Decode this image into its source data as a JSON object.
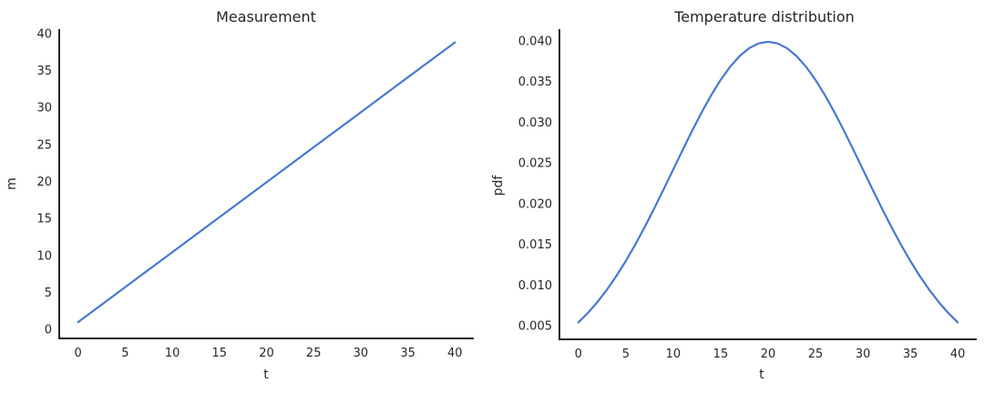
{
  "figure": {
    "background": "#ffffff",
    "text_color": "#262626",
    "axis_color": "#262626",
    "line_color": "#4878d0"
  },
  "chart_data": [
    {
      "type": "line",
      "title": "Measurement",
      "xlabel": "t",
      "ylabel": "m",
      "grid": false,
      "legend": null,
      "line_color": "#4878d0",
      "axis_color": "#262626",
      "xlim": [
        -2,
        42
      ],
      "ylim": [
        -1.2,
        40.6
      ],
      "xtick_values": [
        0,
        5,
        10,
        15,
        20,
        25,
        30,
        35,
        40
      ],
      "xtick_labels": [
        "0",
        "5",
        "10",
        "15",
        "20",
        "25",
        "30",
        "35",
        "40"
      ],
      "ytick_values": [
        0,
        5,
        10,
        15,
        20,
        25,
        30,
        35,
        40
      ],
      "ytick_labels": [
        "0",
        "5",
        "10",
        "15",
        "20",
        "25",
        "30",
        "35",
        "40"
      ],
      "x": [
        0,
        5,
        10,
        15,
        20,
        25,
        30,
        35,
        40
      ],
      "y": [
        1.0,
        5.73,
        10.45,
        15.18,
        19.9,
        24.63,
        29.35,
        34.08,
        38.8
      ]
    },
    {
      "type": "line",
      "title": "Temperature distribution",
      "xlabel": "t",
      "ylabel": "pdf",
      "grid": false,
      "legend": null,
      "line_color": "#4878d0",
      "axis_color": "#262626",
      "xlim": [
        -2,
        42
      ],
      "ylim": [
        0.00332,
        0.04145
      ],
      "xtick_values": [
        0,
        5,
        10,
        15,
        20,
        25,
        30,
        35,
        40
      ],
      "xtick_labels": [
        "0",
        "5",
        "10",
        "15",
        "20",
        "25",
        "30",
        "35",
        "40"
      ],
      "ytick_values": [
        0.005,
        0.01,
        0.015,
        0.02,
        0.025,
        0.03,
        0.035,
        0.04
      ],
      "ytick_labels": [
        "0.005",
        "0.010",
        "0.015",
        "0.020",
        "0.025",
        "0.030",
        "0.035",
        "0.040"
      ],
      "x": [
        0,
        1,
        2,
        3,
        4,
        5,
        6,
        7,
        8,
        9,
        10,
        11,
        12,
        13,
        14,
        15,
        16,
        17,
        18,
        19,
        20,
        21,
        22,
        23,
        24,
        25,
        26,
        27,
        28,
        29,
        30,
        31,
        32,
        33,
        34,
        35,
        36,
        37,
        38,
        39,
        40
      ],
      "y": [
        0.005399,
        0.006562,
        0.007895,
        0.009405,
        0.011092,
        0.012952,
        0.014973,
        0.017137,
        0.019419,
        0.021785,
        0.024197,
        0.026609,
        0.028969,
        0.031225,
        0.033322,
        0.035207,
        0.036827,
        0.038139,
        0.039104,
        0.039695,
        0.039894,
        0.039695,
        0.039104,
        0.038139,
        0.036827,
        0.035207,
        0.033322,
        0.031225,
        0.028969,
        0.026609,
        0.024197,
        0.021785,
        0.019419,
        0.017137,
        0.014973,
        0.012952,
        0.011092,
        0.009405,
        0.007895,
        0.006562,
        0.005399
      ]
    }
  ]
}
